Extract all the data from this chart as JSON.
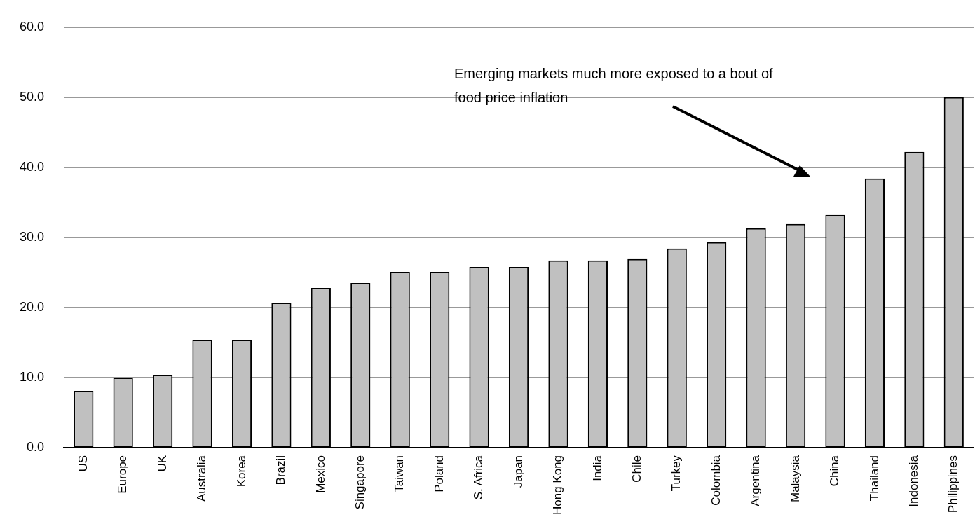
{
  "chart_data": {
    "type": "bar",
    "categories": [
      "US",
      "Europe",
      "UK",
      "Australia",
      "Korea",
      "Brazil",
      "Mexico",
      "Singapore",
      "Taiwan",
      "Poland",
      "S. Africa",
      "Japan",
      "Hong Kong",
      "India",
      "Chile",
      "Turkey",
      "Colombia",
      "Argentina",
      "Malaysia",
      "China",
      "Thailand",
      "Indonesia",
      "Philippines"
    ],
    "values": [
      8.1,
      10.0,
      10.4,
      15.4,
      15.4,
      20.7,
      22.8,
      23.5,
      25.1,
      25.1,
      25.8,
      25.8,
      26.7,
      26.7,
      26.9,
      28.4,
      29.3,
      31.3,
      31.9,
      33.2,
      38.4,
      42.2,
      50.0
    ],
    "color": "#c0c0c0",
    "ylim": [
      0,
      60
    ],
    "yticks": [
      {
        "value": 0,
        "label": "0.0"
      },
      {
        "value": 10,
        "label": "10.0"
      },
      {
        "value": 20,
        "label": "20.0"
      },
      {
        "value": 30,
        "label": "30.0"
      },
      {
        "value": 40,
        "label": "40.0"
      },
      {
        "value": 50,
        "label": "50.0"
      },
      {
        "value": 60,
        "label": "60.0"
      }
    ],
    "grid": "y",
    "annotations": [
      "Emerging markets much more exposed to a bout of food price inflation"
    ]
  }
}
